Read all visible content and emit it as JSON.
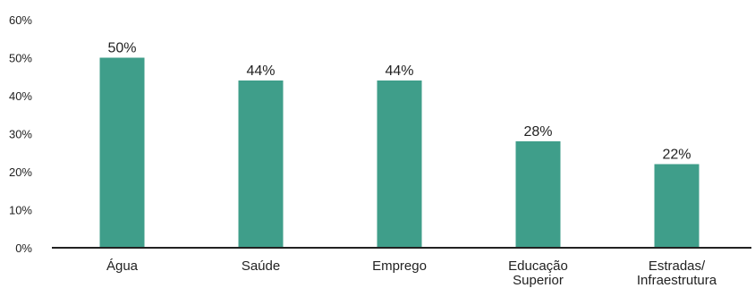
{
  "chart_data": {
    "type": "bar",
    "categories": [
      [
        "Água"
      ],
      [
        "Saúde"
      ],
      [
        "Emprego"
      ],
      [
        "Educação",
        "Superior"
      ],
      [
        "Estradas/",
        "Infraestrutura"
      ]
    ],
    "values": [
      50,
      44,
      44,
      28,
      22
    ],
    "data_labels": [
      "50%",
      "44%",
      "44%",
      "28%",
      "22%"
    ],
    "y_ticks": [
      0,
      10,
      20,
      30,
      40,
      50,
      60
    ],
    "y_tick_labels": [
      "0%",
      "10%",
      "20%",
      "30%",
      "40%",
      "50%",
      "60%"
    ],
    "ylim": [
      0,
      60
    ],
    "grid": false,
    "legend": "none",
    "colors": {
      "bar": "#3f9e8a",
      "axis": "#222222",
      "text": "#222222"
    }
  }
}
